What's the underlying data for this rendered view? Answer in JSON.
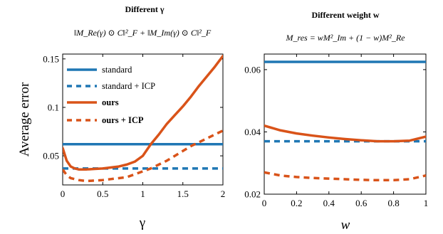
{
  "colors": {
    "blue": "#1f77b4",
    "orange": "#d95319",
    "axis": "#000000"
  },
  "chart_data": [
    {
      "type": "line",
      "title": "Different γ",
      "subtitle": "‖M_Re(γ) ⊙ C‖²_F + ‖M_Im(γ) ⊙ C‖²_F",
      "xlabel": "γ",
      "ylabel": "Average error",
      "xlim": [
        0,
        2
      ],
      "ylim": [
        0.02,
        0.155
      ],
      "xticks": [
        0,
        0.5,
        1,
        1.5,
        2
      ],
      "xtick_labels": [
        "0",
        "0.5",
        "1",
        "1.5",
        "2"
      ],
      "yticks": [
        0.05,
        0.1,
        0.15
      ],
      "ytick_labels": [
        "0.05",
        "0.1",
        "0.15"
      ],
      "grid": false,
      "legend": "top-left",
      "series": [
        {
          "name": "standard",
          "color": "#1f77b4",
          "dash": "solid",
          "bold": false,
          "x": [
            0,
            2
          ],
          "y": [
            0.062,
            0.062
          ]
        },
        {
          "name": "standard + ICP",
          "color": "#1f77b4",
          "dash": "dashed",
          "bold": false,
          "x": [
            0,
            2
          ],
          "y": [
            0.037,
            0.037
          ]
        },
        {
          "name": "ours",
          "color": "#d95319",
          "dash": "solid",
          "bold": true,
          "x": [
            0,
            0.05,
            0.1,
            0.15,
            0.2,
            0.3,
            0.4,
            0.5,
            0.6,
            0.7,
            0.8,
            0.9,
            1.0,
            1.1,
            1.2,
            1.3,
            1.4,
            1.5,
            1.6,
            1.7,
            1.8,
            1.9,
            2.0
          ],
          "y": [
            0.058,
            0.045,
            0.039,
            0.037,
            0.036,
            0.036,
            0.0365,
            0.037,
            0.038,
            0.039,
            0.041,
            0.044,
            0.05,
            0.062,
            0.072,
            0.083,
            0.092,
            0.101,
            0.111,
            0.122,
            0.132,
            0.142,
            0.153
          ]
        },
        {
          "name": "ours + ICP",
          "color": "#d95319",
          "dash": "dashed",
          "bold": true,
          "x": [
            0,
            0.05,
            0.1,
            0.2,
            0.3,
            0.4,
            0.5,
            0.6,
            0.7,
            0.8,
            0.9,
            1.0,
            1.1,
            1.2,
            1.3,
            1.4,
            1.5,
            1.6,
            1.7,
            1.8,
            1.9,
            2.0
          ],
          "y": [
            0.036,
            0.03,
            0.027,
            0.025,
            0.024,
            0.0245,
            0.025,
            0.026,
            0.027,
            0.028,
            0.031,
            0.034,
            0.037,
            0.041,
            0.045,
            0.05,
            0.055,
            0.06,
            0.064,
            0.068,
            0.072,
            0.076
          ]
        }
      ]
    },
    {
      "type": "line",
      "title": "Different weight w",
      "subtitle": "M_res = wM²_Im + (1 − w)M²_Re",
      "xlabel": "w",
      "ylabel": "",
      "xlim": [
        0,
        1
      ],
      "ylim": [
        0.02,
        0.065
      ],
      "xticks": [
        0,
        0.2,
        0.4,
        0.6,
        0.8,
        1
      ],
      "xtick_labels": [
        "0",
        "0.2",
        "0.4",
        "0.6",
        "0.8",
        "1"
      ],
      "yticks": [
        0.02,
        0.04,
        0.06
      ],
      "ytick_labels": [
        "0.02",
        "0.04",
        "0.06"
      ],
      "grid": false,
      "legend": "none",
      "series": [
        {
          "name": "standard",
          "color": "#1f77b4",
          "dash": "solid",
          "bold": false,
          "x": [
            0,
            1
          ],
          "y": [
            0.0625,
            0.0625
          ]
        },
        {
          "name": "standard + ICP",
          "color": "#1f77b4",
          "dash": "dashed",
          "bold": false,
          "x": [
            0,
            1
          ],
          "y": [
            0.037,
            0.037
          ]
        },
        {
          "name": "ours",
          "color": "#d95319",
          "dash": "solid",
          "bold": true,
          "x": [
            0,
            0.1,
            0.2,
            0.3,
            0.4,
            0.5,
            0.6,
            0.7,
            0.8,
            0.9,
            1.0
          ],
          "y": [
            0.042,
            0.0405,
            0.0395,
            0.0388,
            0.0382,
            0.0377,
            0.0373,
            0.037,
            0.037,
            0.0372,
            0.0385
          ]
        },
        {
          "name": "ours + ICP",
          "color": "#d95319",
          "dash": "dashed",
          "bold": true,
          "x": [
            0,
            0.1,
            0.2,
            0.3,
            0.4,
            0.5,
            0.6,
            0.7,
            0.8,
            0.9,
            1.0
          ],
          "y": [
            0.027,
            0.026,
            0.0255,
            0.0252,
            0.025,
            0.0248,
            0.0246,
            0.0245,
            0.0245,
            0.0248,
            0.026
          ]
        }
      ]
    }
  ]
}
